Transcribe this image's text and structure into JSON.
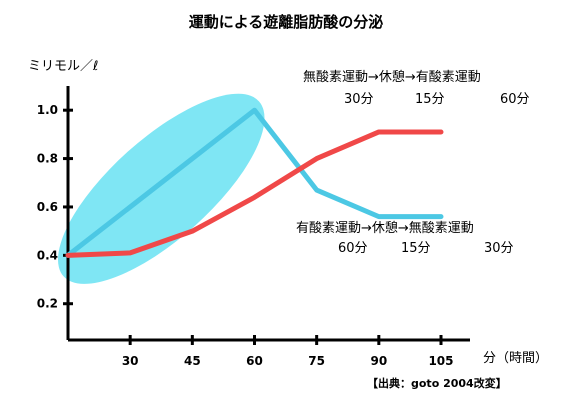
{
  "chart_data": {
    "type": "line",
    "title": "運動による遊離脂肪酸の分泌",
    "ylabel": "ミリモル／ℓ",
    "xlabel": "分（時間）",
    "xlim": [
      15,
      112
    ],
    "ylim": [
      0.05,
      1.1
    ],
    "x_ticks": [
      30,
      45,
      60,
      75,
      90,
      105
    ],
    "x_tick_labels": [
      "30",
      "45",
      "60",
      "75",
      "90",
      "105"
    ],
    "y_ticks": [
      0.2,
      0.4,
      0.6,
      0.8,
      1.0
    ],
    "y_tick_labels": [
      "0.2",
      "0.4",
      "0.6",
      "0.8",
      "1.0"
    ],
    "grid": false,
    "series": [
      {
        "color": "#4cc8e4",
        "x": [
          15,
          60,
          75,
          90,
          105
        ],
        "y": [
          0.4,
          1.0,
          0.67,
          0.56,
          0.56
        ]
      },
      {
        "color": "#f04848",
        "x": [
          15,
          30,
          45,
          60,
          75,
          90,
          105
        ],
        "y": [
          0.4,
          0.41,
          0.5,
          0.64,
          0.8,
          0.91,
          0.91
        ]
      }
    ],
    "highlight": {
      "color": "#7fe6f4",
      "x_range": [
        15,
        60
      ],
      "y_range": [
        0.33,
        1.02
      ]
    },
    "annotations": [
      {
        "line1": "無酸素運動→休憩→有酸素運動",
        "line2": [
          "30分",
          "15分",
          "60分"
        ]
      },
      {
        "line1": "有酸素運動→休憩→無酸素運動",
        "line2": [
          "60分",
          "15分",
          "30分"
        ]
      }
    ],
    "source": "【出典：goto 2004改変】"
  }
}
